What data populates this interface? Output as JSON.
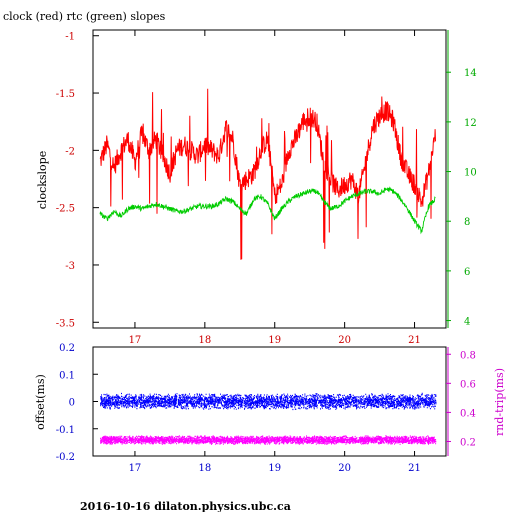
{
  "page": {
    "title": "clock (red) rtc (green) slopes",
    "footer": "2016-10-16 dilaton.physics.ubc.ca"
  },
  "colors": {
    "clock": "#ff0000",
    "rtc": "#00cc00",
    "offset": "#0000ff",
    "rndtrip": "#ff00ff",
    "axis_left_top": "#cc0000",
    "axis_right_top": "#00aa00",
    "axis_left_bottom": "#0000cc",
    "axis_right_bottom": "#cc00cc"
  },
  "chart_data": [
    {
      "type": "line",
      "title": "clock (red) rtc (green) slopes",
      "ylabel": "clockslope",
      "xlim": [
        16.4,
        21.45
      ],
      "ylim": [
        -3.55,
        -0.95
      ],
      "y2lim": [
        3.7,
        15.7
      ],
      "xticks": [
        "17",
        "18",
        "19",
        "20",
        "21"
      ],
      "yticks": [
        "-1",
        "-1.5",
        "-2",
        "-2.5",
        "-3",
        "-3.5"
      ],
      "y2ticks": [
        "14",
        "12",
        "10",
        "8",
        "6",
        "4"
      ],
      "series": [
        {
          "name": "clock",
          "axis": "left",
          "x": [
            16.5,
            16.6,
            16.7,
            16.8,
            16.9,
            17.0,
            17.1,
            17.2,
            17.3,
            17.4,
            17.5,
            17.6,
            17.7,
            17.8,
            17.9,
            18.0,
            18.1,
            18.2,
            18.3,
            18.4,
            18.5,
            18.6,
            18.7,
            18.8,
            18.9,
            19.0,
            19.1,
            19.2,
            19.3,
            19.4,
            19.5,
            19.6,
            19.7,
            19.8,
            19.9,
            20.0,
            20.1,
            20.2,
            20.3,
            20.4,
            20.5,
            20.6,
            20.7,
            20.8,
            20.9,
            21.0,
            21.1,
            21.2,
            21.3
          ],
          "y": [
            -2.1,
            -1.95,
            -2.15,
            -2.0,
            -1.9,
            -2.1,
            -1.85,
            -2.0,
            -1.9,
            -2.05,
            -2.2,
            -2.0,
            -1.95,
            -2.0,
            -2.05,
            -1.95,
            -2.0,
            -2.05,
            -1.8,
            -1.9,
            -2.3,
            -2.25,
            -2.2,
            -2.0,
            -1.9,
            -2.4,
            -2.3,
            -2.0,
            -1.9,
            -1.75,
            -1.7,
            -1.75,
            -2.1,
            -2.25,
            -2.35,
            -2.3,
            -2.25,
            -2.4,
            -2.1,
            -1.8,
            -1.7,
            -1.65,
            -1.75,
            -2.05,
            -2.2,
            -2.3,
            -2.45,
            -2.2,
            -1.85
          ]
        },
        {
          "name": "rtc",
          "axis": "right",
          "x": [
            16.5,
            16.6,
            16.7,
            16.8,
            16.9,
            17.0,
            17.1,
            17.2,
            17.3,
            17.4,
            17.5,
            17.6,
            17.7,
            17.8,
            17.9,
            18.0,
            18.1,
            18.2,
            18.3,
            18.4,
            18.5,
            18.6,
            18.7,
            18.8,
            18.9,
            19.0,
            19.1,
            19.2,
            19.3,
            19.4,
            19.5,
            19.6,
            19.7,
            19.8,
            19.9,
            20.0,
            20.1,
            20.2,
            20.3,
            20.4,
            20.5,
            20.6,
            20.7,
            20.8,
            20.9,
            21.0,
            21.1,
            21.2,
            21.3
          ],
          "y": [
            8.3,
            8.1,
            8.4,
            8.2,
            8.5,
            8.6,
            8.5,
            8.6,
            8.7,
            8.6,
            8.5,
            8.4,
            8.4,
            8.5,
            8.6,
            8.6,
            8.6,
            8.7,
            8.9,
            8.8,
            8.5,
            8.3,
            8.9,
            9.0,
            8.7,
            8.1,
            8.5,
            8.8,
            9.0,
            9.1,
            9.2,
            9.2,
            8.8,
            8.5,
            8.6,
            8.8,
            9.0,
            9.1,
            9.2,
            9.2,
            9.1,
            9.3,
            9.2,
            8.9,
            8.5,
            8.0,
            7.6,
            8.6,
            8.9
          ]
        }
      ]
    },
    {
      "type": "scatter",
      "ylabel": "offset(ms)",
      "y2label": "rnd-trip(ms)",
      "xlim": [
        16.4,
        21.45
      ],
      "ylim": [
        -0.2,
        0.2
      ],
      "y2lim": [
        0.1,
        0.85
      ],
      "xticks": [
        "17",
        "18",
        "19",
        "20",
        "21"
      ],
      "yticks": [
        "0.2",
        "0.1",
        "0",
        "-0.1",
        "-0.2"
      ],
      "y2ticks": [
        "0.8",
        "0.6",
        "0.4",
        "0.2"
      ],
      "series": [
        {
          "name": "offset",
          "axis": "left",
          "x_range": [
            16.5,
            21.3
          ],
          "center": 0.0,
          "spread": 0.03
        },
        {
          "name": "rnd-trip",
          "axis": "right",
          "x_range": [
            16.5,
            21.3
          ],
          "center": 0.21,
          "spread": 0.03
        }
      ]
    }
  ]
}
